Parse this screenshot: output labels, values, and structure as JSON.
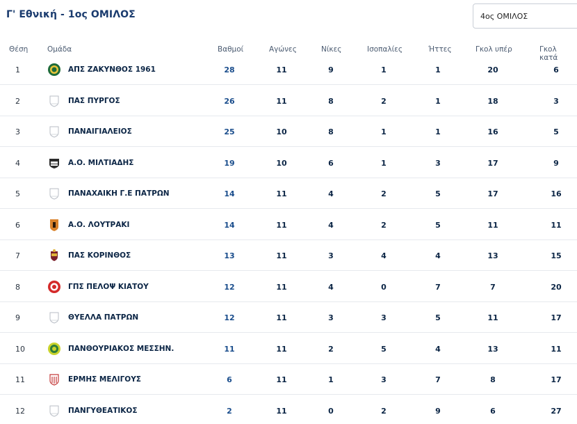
{
  "page": {
    "title": "Γ' Εθνική - 1ος ΟΜΙΛΟΣ",
    "group_select_value": "4ος ΟΜΙΛΟΣ"
  },
  "table": {
    "headers": {
      "pos": "Θέση",
      "team": "Ομάδα",
      "points": "Βαθμοί",
      "played": "Αγώνες",
      "wins": "Νίκες",
      "draws": "Ισοπαλίες",
      "losses": "Ήττες",
      "goals_for": "Γκολ υπέρ",
      "goals_against": "Γκολ κατά"
    },
    "rows": [
      {
        "pos": "1",
        "team": "ΑΠΣ ΖΑΚΥΝΘΟΣ 1961",
        "logo": "green-yellow-crest-icon",
        "points": "28",
        "played": "11",
        "wins": "9",
        "draws": "1",
        "losses": "1",
        "gf": "20",
        "ga": "6"
      },
      {
        "pos": "2",
        "team": "ΠΑΣ ΠΥΡΓΟΣ",
        "logo": "placeholder-shield-icon",
        "points": "26",
        "played": "11",
        "wins": "8",
        "draws": "2",
        "losses": "1",
        "gf": "18",
        "ga": "3"
      },
      {
        "pos": "3",
        "team": "ΠΑΝΑΙΓΙΑΛΕΙΟΣ",
        "logo": "placeholder-shield-icon",
        "points": "25",
        "played": "10",
        "wins": "8",
        "draws": "1",
        "losses": "1",
        "gf": "16",
        "ga": "5"
      },
      {
        "pos": "4",
        "team": "Α.Ο. ΜΙΛΤΙΑΔΗΣ",
        "logo": "black-white-crest-icon",
        "points": "19",
        "played": "10",
        "wins": "6",
        "draws": "1",
        "losses": "3",
        "gf": "17",
        "ga": "9"
      },
      {
        "pos": "5",
        "team": "ΠΑΝΑΧΑΙΚΗ Γ.Ε ΠΑΤΡΩΝ",
        "logo": "placeholder-shield-icon",
        "points": "14",
        "played": "11",
        "wins": "4",
        "draws": "2",
        "losses": "5",
        "gf": "17",
        "ga": "16"
      },
      {
        "pos": "6",
        "team": "Α.Ο. ΛΟΥΤΡΑΚΙ",
        "logo": "orange-black-crest-icon",
        "points": "14",
        "played": "11",
        "wins": "4",
        "draws": "2",
        "losses": "5",
        "gf": "11",
        "ga": "11"
      },
      {
        "pos": "7",
        "team": "ΠΑΣ ΚΟΡΙΝΘΟΣ",
        "logo": "red-gold-crest-icon",
        "points": "13",
        "played": "11",
        "wins": "3",
        "draws": "4",
        "losses": "4",
        "gf": "13",
        "ga": "15"
      },
      {
        "pos": "8",
        "team": "ΓΠΣ ΠΕΛΟΨ ΚΙΑΤΟΥ",
        "logo": "red-round-crest-icon",
        "points": "12",
        "played": "11",
        "wins": "4",
        "draws": "0",
        "losses": "7",
        "gf": "7",
        "ga": "20"
      },
      {
        "pos": "9",
        "team": "ΘΥΕΛΛΑ ΠΑΤΡΩΝ",
        "logo": "placeholder-shield-icon",
        "points": "12",
        "played": "11",
        "wins": "3",
        "draws": "3",
        "losses": "5",
        "gf": "11",
        "ga": "17"
      },
      {
        "pos": "10",
        "team": "ΠΑΝΘΟΥΡΙΑΚΟΣ ΜΕΣΣΗΝ.",
        "logo": "yellow-green-round-crest-icon",
        "points": "11",
        "played": "11",
        "wins": "2",
        "draws": "5",
        "losses": "4",
        "gf": "13",
        "ga": "11"
      },
      {
        "pos": "11",
        "team": "ΕΡΜΗΣ ΜΕΛΙΓΟΥΣ",
        "logo": "red-white-shield-icon",
        "points": "6",
        "played": "11",
        "wins": "1",
        "draws": "3",
        "losses": "7",
        "gf": "8",
        "ga": "17"
      },
      {
        "pos": "12",
        "team": "ΠΑΝΓΥΘΕΑΤΙΚΟΣ",
        "logo": "placeholder-shield-icon",
        "points": "2",
        "played": "11",
        "wins": "0",
        "draws": "2",
        "losses": "9",
        "gf": "6",
        "ga": "27"
      }
    ]
  }
}
